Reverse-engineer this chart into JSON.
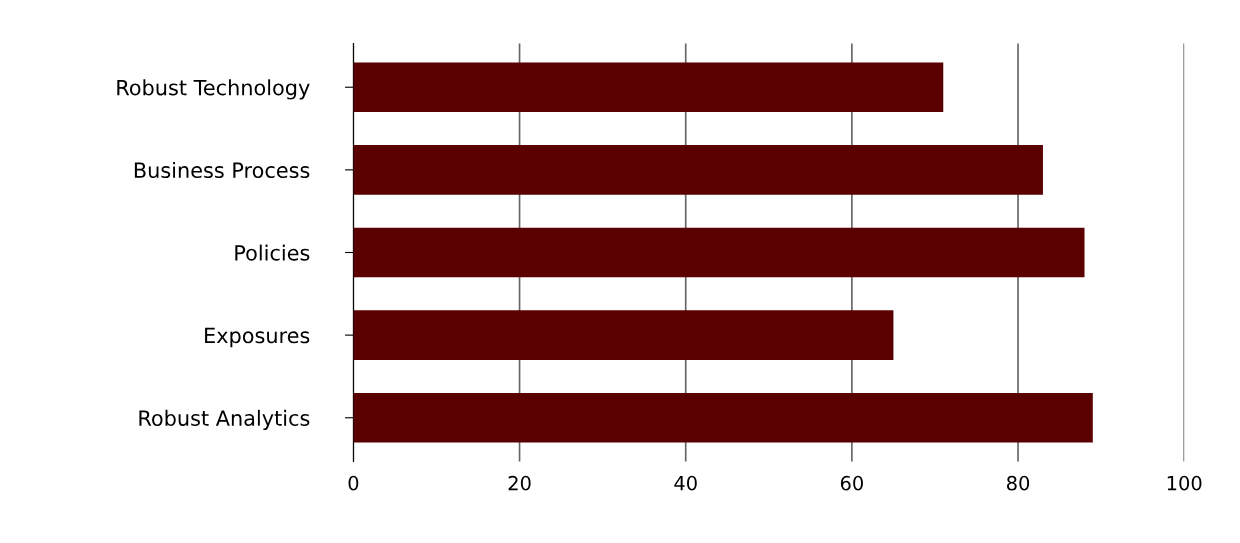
{
  "chart_data": {
    "type": "bar",
    "orientation": "horizontal",
    "categories": [
      "Robust Technology",
      "Business Process",
      "Policies",
      "Exposures",
      "Robust Analytics"
    ],
    "values": [
      71,
      83,
      88,
      65,
      89
    ],
    "color": "#5a0000",
    "xlim": [
      0,
      100
    ],
    "xticks": [
      0,
      20,
      40,
      60,
      80,
      100
    ],
    "grid": "x"
  }
}
